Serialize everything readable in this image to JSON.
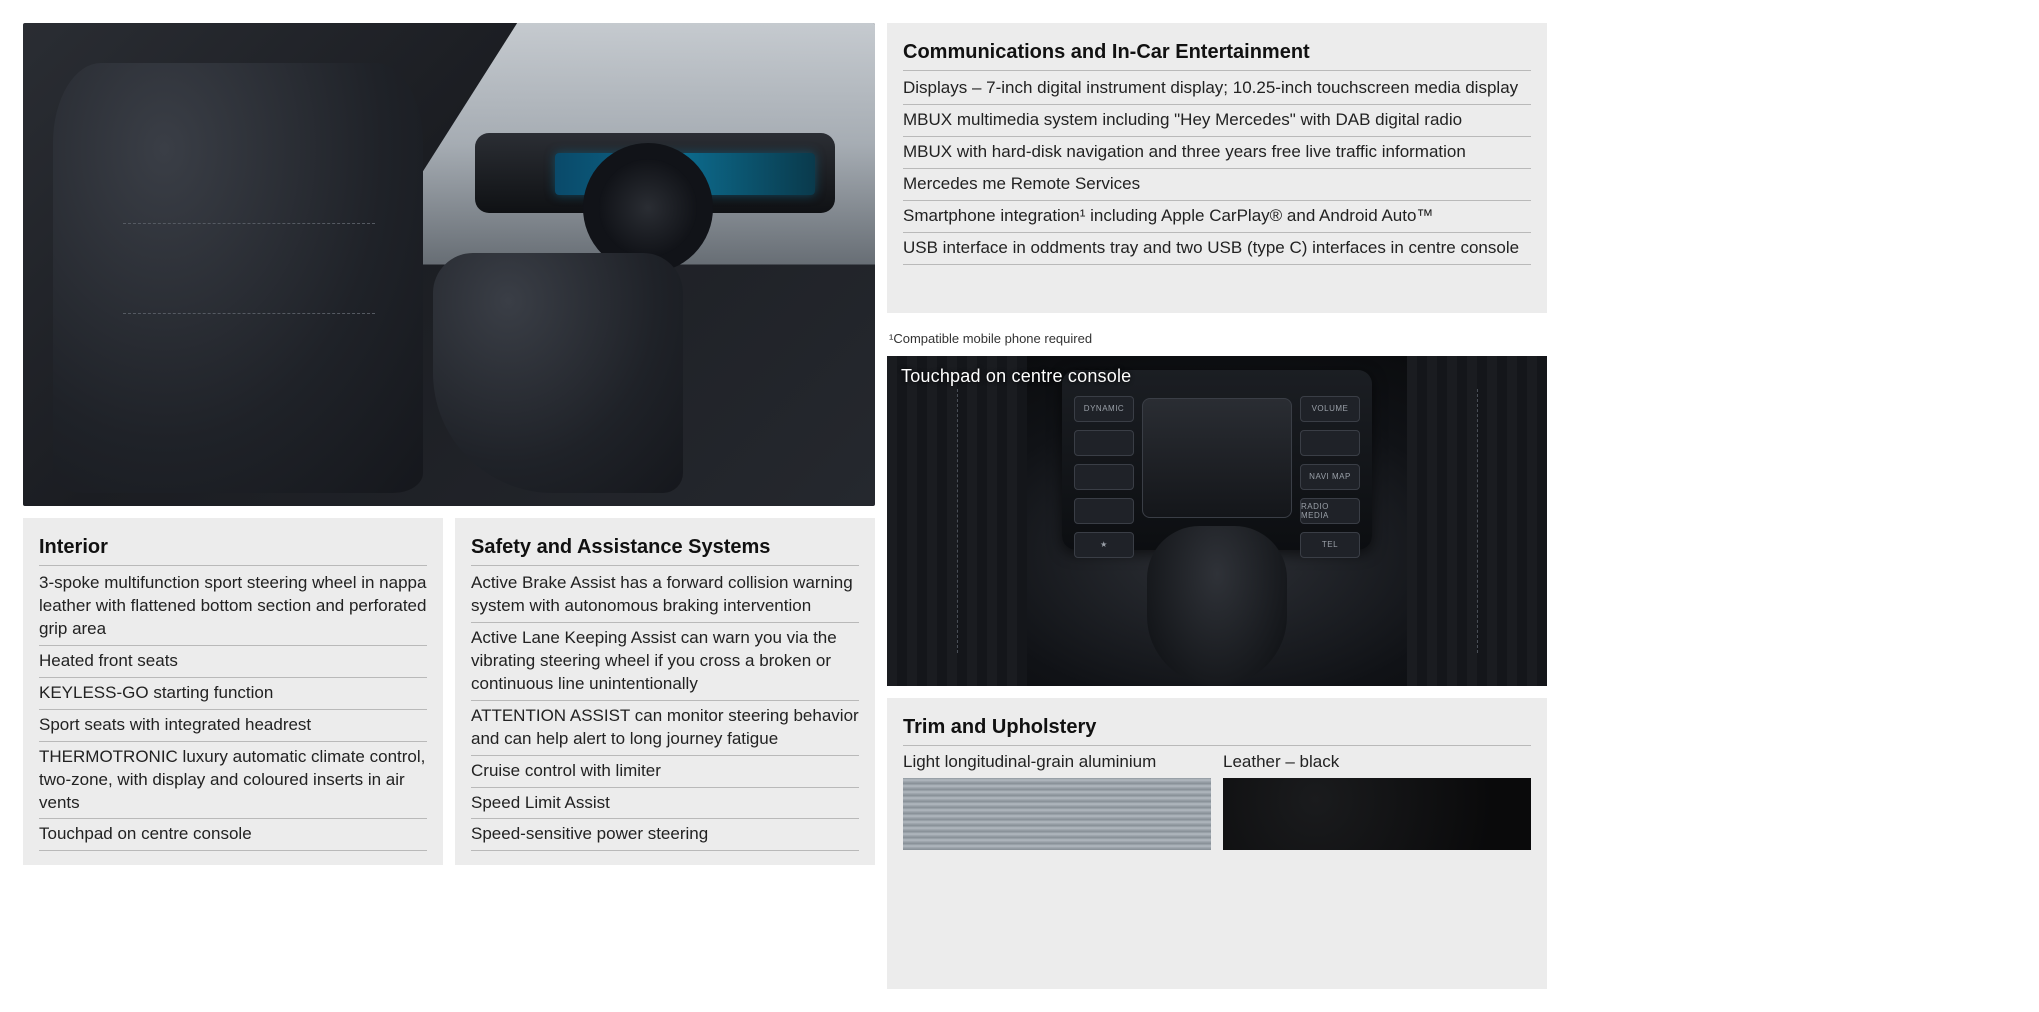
{
  "hero": {
    "alt": "Car interior with black sport seats, steering wheel and widescreen display"
  },
  "interior": {
    "title": "Interior",
    "items": [
      "3-spoke multifunction sport steering wheel in nappa leather with flattened bottom section and perforated grip area",
      "Heated front seats",
      "KEYLESS-GO starting function",
      "Sport seats with integrated headrest",
      "THERMOTRONIC luxury automatic climate control, two-zone, with display and coloured inserts in air vents",
      "Touchpad on centre console"
    ]
  },
  "safety": {
    "title": "Safety and Assistance Systems",
    "items": [
      "Active Brake Assist has a forward collision warning system with autonomous braking intervention",
      "Active Lane Keeping Assist can warn you via the vibrating steering wheel if you cross a broken or continuous line unintentionally",
      "ATTENTION ASSIST can monitor steering behavior and can help alert to long journey fatigue",
      "Cruise control with limiter",
      "Speed Limit Assist",
      "Speed-sensitive power steering"
    ]
  },
  "comms": {
    "title": "Communications and In-Car Entertainment",
    "items": [
      "Displays – 7-inch digital instrument display; 10.25-inch touchscreen media display",
      "MBUX multimedia system including \"Hey Mercedes\" with DAB digital radio",
      "MBUX with hard-disk navigation and three years free live traffic information",
      "Mercedes me Remote Services",
      "Smartphone integration¹ including Apple CarPlay® and Android Auto™",
      "USB interface in oddments tray and two USB (type C) interfaces in centre console"
    ],
    "footnote": "¹Compatible mobile phone required"
  },
  "touchpad": {
    "caption": "Touchpad on centre console",
    "left_buttons": [
      "DYNAMIC",
      "",
      "",
      "",
      "★"
    ],
    "right_buttons": [
      "VOLUME",
      "",
      "NAVI MAP",
      "RADIO MEDIA",
      "TEL"
    ]
  },
  "trim": {
    "title": "Trim and Upholstery",
    "items": [
      {
        "label": "Light longitudinal-grain aluminium",
        "swatch": "aluminium"
      },
      {
        "label": "Leather – black",
        "swatch": "leather"
      }
    ]
  },
  "colors": {
    "panel_bg": "#ececec",
    "divider": "#b9b9b9",
    "text": "#222222",
    "title": "#111111"
  }
}
